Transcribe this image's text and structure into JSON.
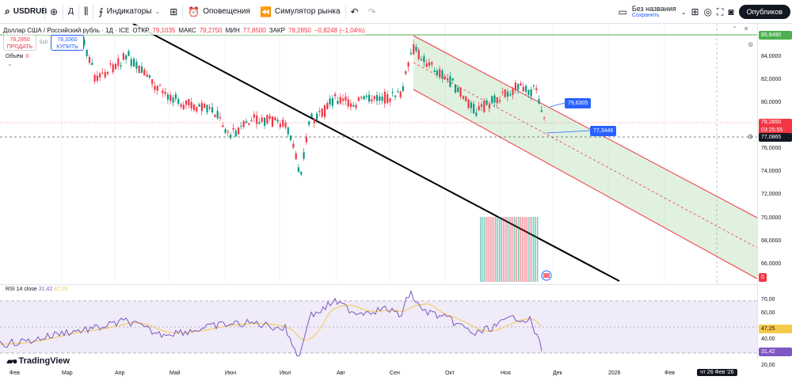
{
  "toolbar": {
    "symbol": "USDRUB",
    "interval": "Д",
    "indicators": "Индикаторы",
    "alerts": "Оповещения",
    "replay": "Симулятор рынка",
    "layout_name": "Без названия",
    "layout_sub": "Сохранить",
    "publish": "Опубликов"
  },
  "legend": {
    "title": "Доллар США / Российский рубль · 1Д · ICE",
    "open_k": "ОТКР",
    "open": "79,1035",
    "high_k": "МАКС",
    "high": "79,2750",
    "low_k": "МИН",
    "low": "77,8500",
    "close_k": "ЗАКР",
    "close": "78,2850",
    "change": "−0,8248 (−1,04%)"
  },
  "trade": {
    "sell_price": "78,2850",
    "sell_label": "ПРОДАТЬ",
    "spread": "510",
    "buy_price": "78,3360",
    "buy_label": "КУПИТЬ"
  },
  "volume": {
    "label": "Объём",
    "value": "0"
  },
  "rsi": {
    "label": "RSI 14 close",
    "value": "31,42",
    "ma": "47,25"
  },
  "price_axis": [
    "84,0000",
    "82,0000",
    "80,0000",
    "76,0000",
    "74,0000",
    "72,0000",
    "70,0000",
    "68,0000",
    "66,0000"
  ],
  "price_tags": {
    "top": "85,8490",
    "current": "78,2850",
    "countdown": "03:25:55",
    "crosshair": "77,0865",
    "zero": "0"
  },
  "rsi_axis": [
    "70,00",
    "60,00",
    "40,00",
    "30,00",
    "20,00"
  ],
  "rsi_tags": {
    "ma": "47,25",
    "value": "31,42"
  },
  "callouts": {
    "upper": "79,6305",
    "lower": "77,3446"
  },
  "time_axis": [
    "Фев",
    "Мар",
    "Апр",
    "Май",
    "Июн",
    "Июл",
    "Авг",
    "Сен",
    "Окт",
    "Ноя",
    "Дек",
    "2026",
    "Фев"
  ],
  "date_chip": "чт 26 Фев '26",
  "brand": "TradingView",
  "colors": {
    "up": "#089981",
    "down": "#f23645",
    "rsi": "#7e57c2",
    "rsi_ma": "#f7c948",
    "channel": "#f23645",
    "accent": "#2962ff"
  }
}
